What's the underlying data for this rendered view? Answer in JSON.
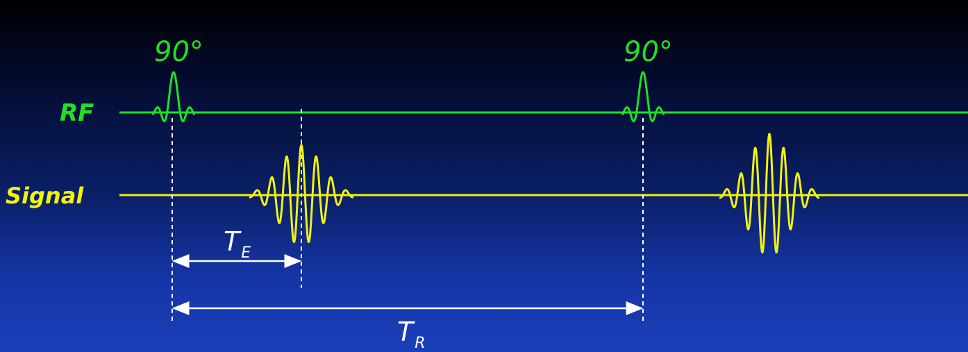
{
  "colors": {
    "rf": "#22e022",
    "signal": "#f2f20a",
    "timing": "#ffffff"
  },
  "labels": {
    "rf": "RF",
    "signal": "Signal",
    "pulse1": "90°",
    "pulse2": "90°",
    "te_main": "T",
    "te_sub": "E",
    "tr_main": "T",
    "tr_sub": "R"
  }
}
